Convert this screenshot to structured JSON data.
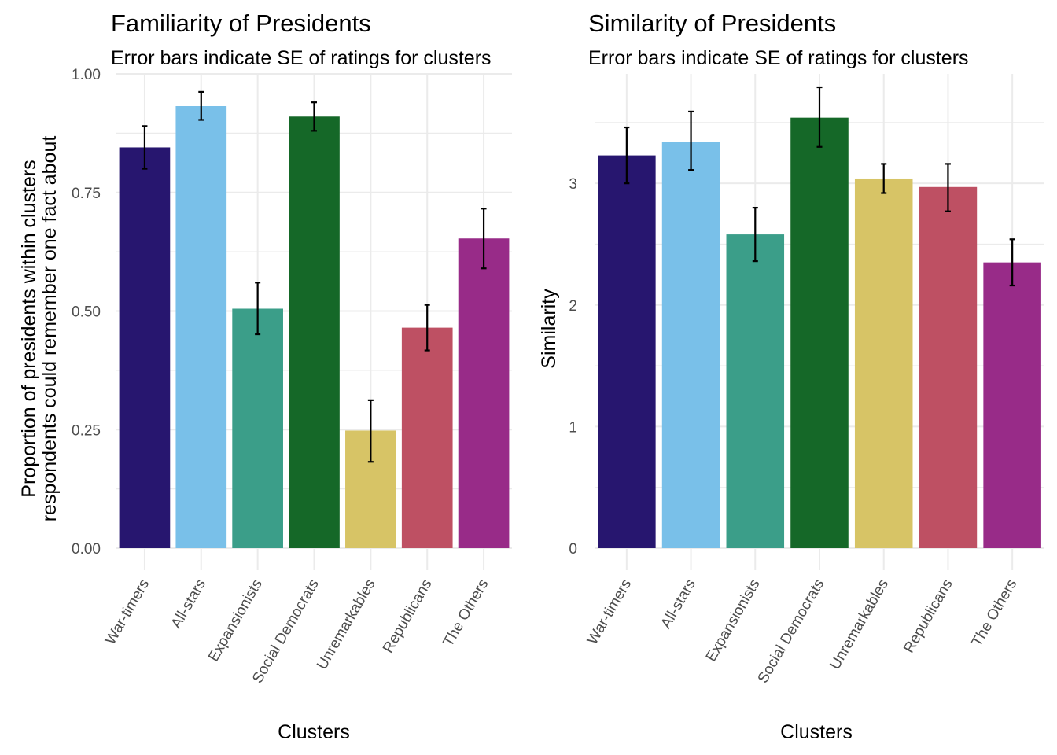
{
  "chart_data": [
    {
      "type": "bar",
      "title": "Familiarity of Presidents",
      "subtitle": "Error bars indicate SE of ratings for clusters",
      "xlabel": "Clusters",
      "ylabel_lines": [
        "Proportion of presidents within clusters",
        "respondents could remember one fact about"
      ],
      "categories": [
        "War-timers",
        "All-stars",
        "Expansionists",
        "Social Democrats",
        "Unremarkables",
        "Republicans",
        "The Others"
      ],
      "values": [
        0.845,
        0.932,
        0.505,
        0.91,
        0.248,
        0.465,
        0.653
      ],
      "error_low": [
        0.8,
        0.903,
        0.451,
        0.88,
        0.182,
        0.417,
        0.59
      ],
      "error_high": [
        0.89,
        0.962,
        0.56,
        0.94,
        0.312,
        0.513,
        0.716
      ],
      "ylim": [
        0,
        1.0
      ],
      "yticks": [
        0,
        0.25,
        0.5,
        0.75,
        1.0
      ],
      "ytick_labels": [
        "0.00",
        "0.25",
        "0.50",
        "0.75",
        "1.00"
      ],
      "colors": [
        "#27166f",
        "#79c0e9",
        "#3b9e89",
        "#156828",
        "#d7c466",
        "#be5063",
        "#982b88"
      ]
    },
    {
      "type": "bar",
      "title": "Similarity of Presidents",
      "subtitle": "Error bars indicate SE of ratings for clusters",
      "xlabel": "Clusters",
      "ylabel_lines": [
        "Similarity"
      ],
      "categories": [
        "War-timers",
        "All-stars",
        "Expansionists",
        "Social Democrats",
        "Unremarkables",
        "Republicans",
        "The Others"
      ],
      "values": [
        3.23,
        3.34,
        2.58,
        3.54,
        3.04,
        2.97,
        2.35
      ],
      "error_low": [
        3.0,
        3.11,
        2.36,
        3.3,
        2.92,
        2.77,
        2.16
      ],
      "error_high": [
        3.46,
        3.59,
        2.8,
        3.79,
        3.16,
        3.16,
        2.54
      ],
      "ylim": [
        0,
        3.9
      ],
      "yticks": [
        0,
        1,
        2,
        3
      ],
      "ytick_labels": [
        "0",
        "1",
        "2",
        "3"
      ],
      "colors": [
        "#27166f",
        "#79c0e9",
        "#3b9e89",
        "#156828",
        "#d7c466",
        "#be5063",
        "#982b88"
      ]
    }
  ]
}
